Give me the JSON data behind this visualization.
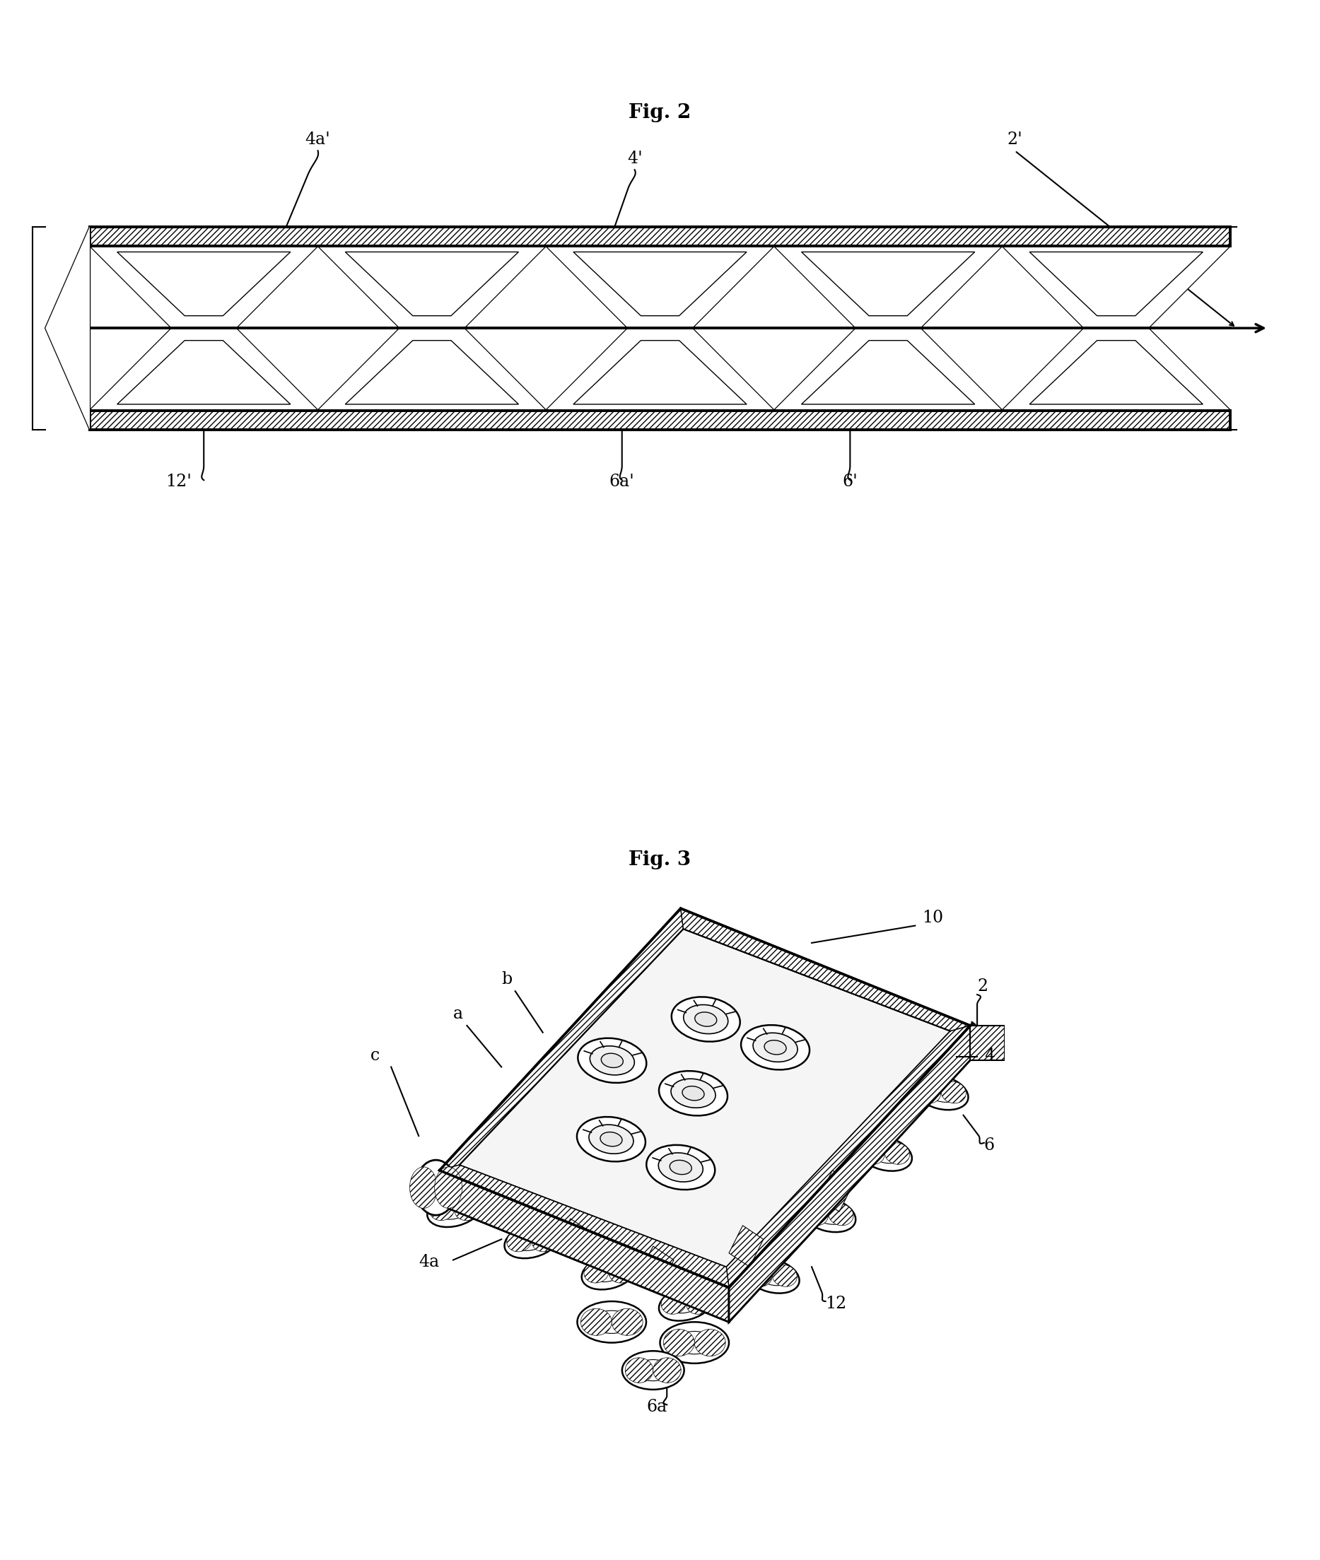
{
  "fig2_title": "Fig. 2",
  "fig3_title": "Fig. 3",
  "background_color": "#ffffff",
  "labels_fig2": {
    "4a_prime": "4a'",
    "4_prime": "4'",
    "2_prime": "2'",
    "12_prime": "12'",
    "6a_prime": "6a'",
    "6_prime": "6'"
  },
  "labels_fig3": {
    "10": "10",
    "2": "2",
    "4": "4",
    "a": "a",
    "b": "b",
    "c": "c",
    "4a": "4a",
    "6a": "6a",
    "12": "12",
    "6": "6"
  }
}
